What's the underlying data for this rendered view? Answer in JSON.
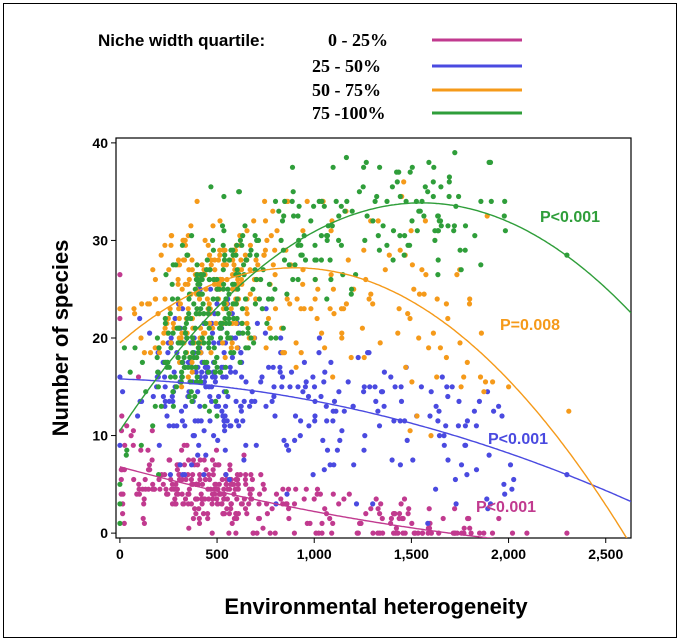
{
  "chart_data": {
    "type": "scatter",
    "xlabel": "Environmental heterogeneity",
    "ylabel": "Number of species",
    "xlim": [
      -20,
      2630
    ],
    "ylim": [
      -0.5,
      40.5
    ],
    "xticks": [
      {
        "value": 0,
        "label": "0"
      },
      {
        "value": 500,
        "label": "500"
      },
      {
        "value": 1000,
        "label": "1,000"
      },
      {
        "value": 1500,
        "label": "1,500"
      },
      {
        "value": 2000,
        "label": "2,000"
      },
      {
        "value": 2500,
        "label": "2,500"
      }
    ],
    "yticks": [
      {
        "value": 0,
        "label": "0"
      },
      {
        "value": 10,
        "label": "10"
      },
      {
        "value": 20,
        "label": "20"
      },
      {
        "value": 30,
        "label": "30"
      },
      {
        "value": 40,
        "label": "40"
      }
    ],
    "legend": {
      "title": "Niche width quartile:",
      "position": "top"
    },
    "series": [
      {
        "name": "0 -  25%",
        "color": "#c13a8f",
        "p_label": "P<0.001",
        "fit": {
          "a": 6.8,
          "b": -0.0054,
          "c": 8.2e-07
        },
        "seed": 11,
        "clusters": [
          {
            "n": 200,
            "xc": 450,
            "xs": 180,
            "noise": 1.2,
            "ymin": 0,
            "ymax": 9
          },
          {
            "n": 55,
            "xc": 950,
            "xs": 260,
            "noise": 1.0,
            "ymin": 0,
            "ymax": 6
          },
          {
            "n": 55,
            "xc": 1580,
            "xs": 200,
            "noise": 0.8,
            "ymin": 0,
            "ymax": 4
          },
          {
            "n": 25,
            "xc": 60,
            "xs": 70,
            "noise": 2.2,
            "ymin": 0,
            "ymax": 27
          }
        ],
        "fixed": [
          {
            "x": 0,
            "y": 26.5
          },
          {
            "x": 0,
            "y": 22
          },
          {
            "x": 10,
            "y": 12
          },
          {
            "x": 2300,
            "y": 0
          },
          {
            "x": 1950,
            "y": 1.5
          },
          {
            "x": 1800,
            "y": 0.5
          }
        ]
      },
      {
        "name": "25 -  50%",
        "color": "#4a4ae0",
        "p_label": "P<0.001",
        "fit": {
          "a": 15.8,
          "b": -0.0007,
          "c": -1.55e-06
        },
        "seed": 23,
        "clusters": [
          {
            "n": 170,
            "xc": 420,
            "xs": 150,
            "noise": 2.6,
            "ymin": 6,
            "ymax": 25
          },
          {
            "n": 95,
            "xc": 950,
            "xs": 300,
            "noise": 3.0,
            "ymin": 3,
            "ymax": 23
          },
          {
            "n": 55,
            "xc": 1650,
            "xs": 200,
            "noise": 2.6,
            "ymin": 1,
            "ymax": 17
          }
        ],
        "fixed": [
          {
            "x": 2300,
            "y": 6
          },
          {
            "x": 2010,
            "y": 7
          },
          {
            "x": 0,
            "y": 16
          },
          {
            "x": 0,
            "y": 9
          },
          {
            "x": 1850,
            "y": 13.5
          },
          {
            "x": 1900,
            "y": 8
          }
        ]
      },
      {
        "name": "50 -  75%",
        "color": "#f59a1a",
        "p_label": "P=0.008",
        "fit": {
          "a": 19.5,
          "b": 0.0171,
          "c": -9.5e-06
        },
        "seed": 37,
        "clusters": [
          {
            "n": 190,
            "xc": 430,
            "xs": 150,
            "noise": 2.4,
            "ymin": 14,
            "ymax": 34
          },
          {
            "n": 85,
            "xc": 950,
            "xs": 260,
            "noise": 3.0,
            "ymin": 10,
            "ymax": 34
          },
          {
            "n": 40,
            "xc": 1600,
            "xs": 180,
            "noise": 4.5,
            "ymin": 10,
            "ymax": 36
          }
        ],
        "fixed": [
          {
            "x": 2310,
            "y": 12.5
          },
          {
            "x": 2000,
            "y": 15
          },
          {
            "x": 1890,
            "y": 32.5
          },
          {
            "x": 0,
            "y": 23
          },
          {
            "x": 1680,
            "y": 18
          },
          {
            "x": 1800,
            "y": 24
          }
        ]
      },
      {
        "name": "75 -100%",
        "color": "#2f9e3a",
        "p_label": "P<0.001",
        "fit": {
          "a": 10.5,
          "b": 0.0301,
          "c": -9.7e-06
        },
        "seed": 53,
        "clusters": [
          {
            "n": 230,
            "xc": 420,
            "xs": 170,
            "noise": 3.0,
            "ymin": 6,
            "ymax": 36
          },
          {
            "n": 95,
            "xc": 950,
            "xs": 250,
            "noise": 2.6,
            "ymin": 15,
            "ymax": 38
          },
          {
            "n": 60,
            "xc": 1600,
            "xs": 170,
            "noise": 2.3,
            "ymin": 24,
            "ymax": 39
          }
        ],
        "fixed": [
          {
            "x": 2300,
            "y": 28.5
          },
          {
            "x": 0,
            "y": 1
          },
          {
            "x": 0,
            "y": 5
          },
          {
            "x": 0,
            "y": 3
          },
          {
            "x": 1980,
            "y": 34
          },
          {
            "x": 1900,
            "y": 38
          }
        ]
      }
    ]
  }
}
